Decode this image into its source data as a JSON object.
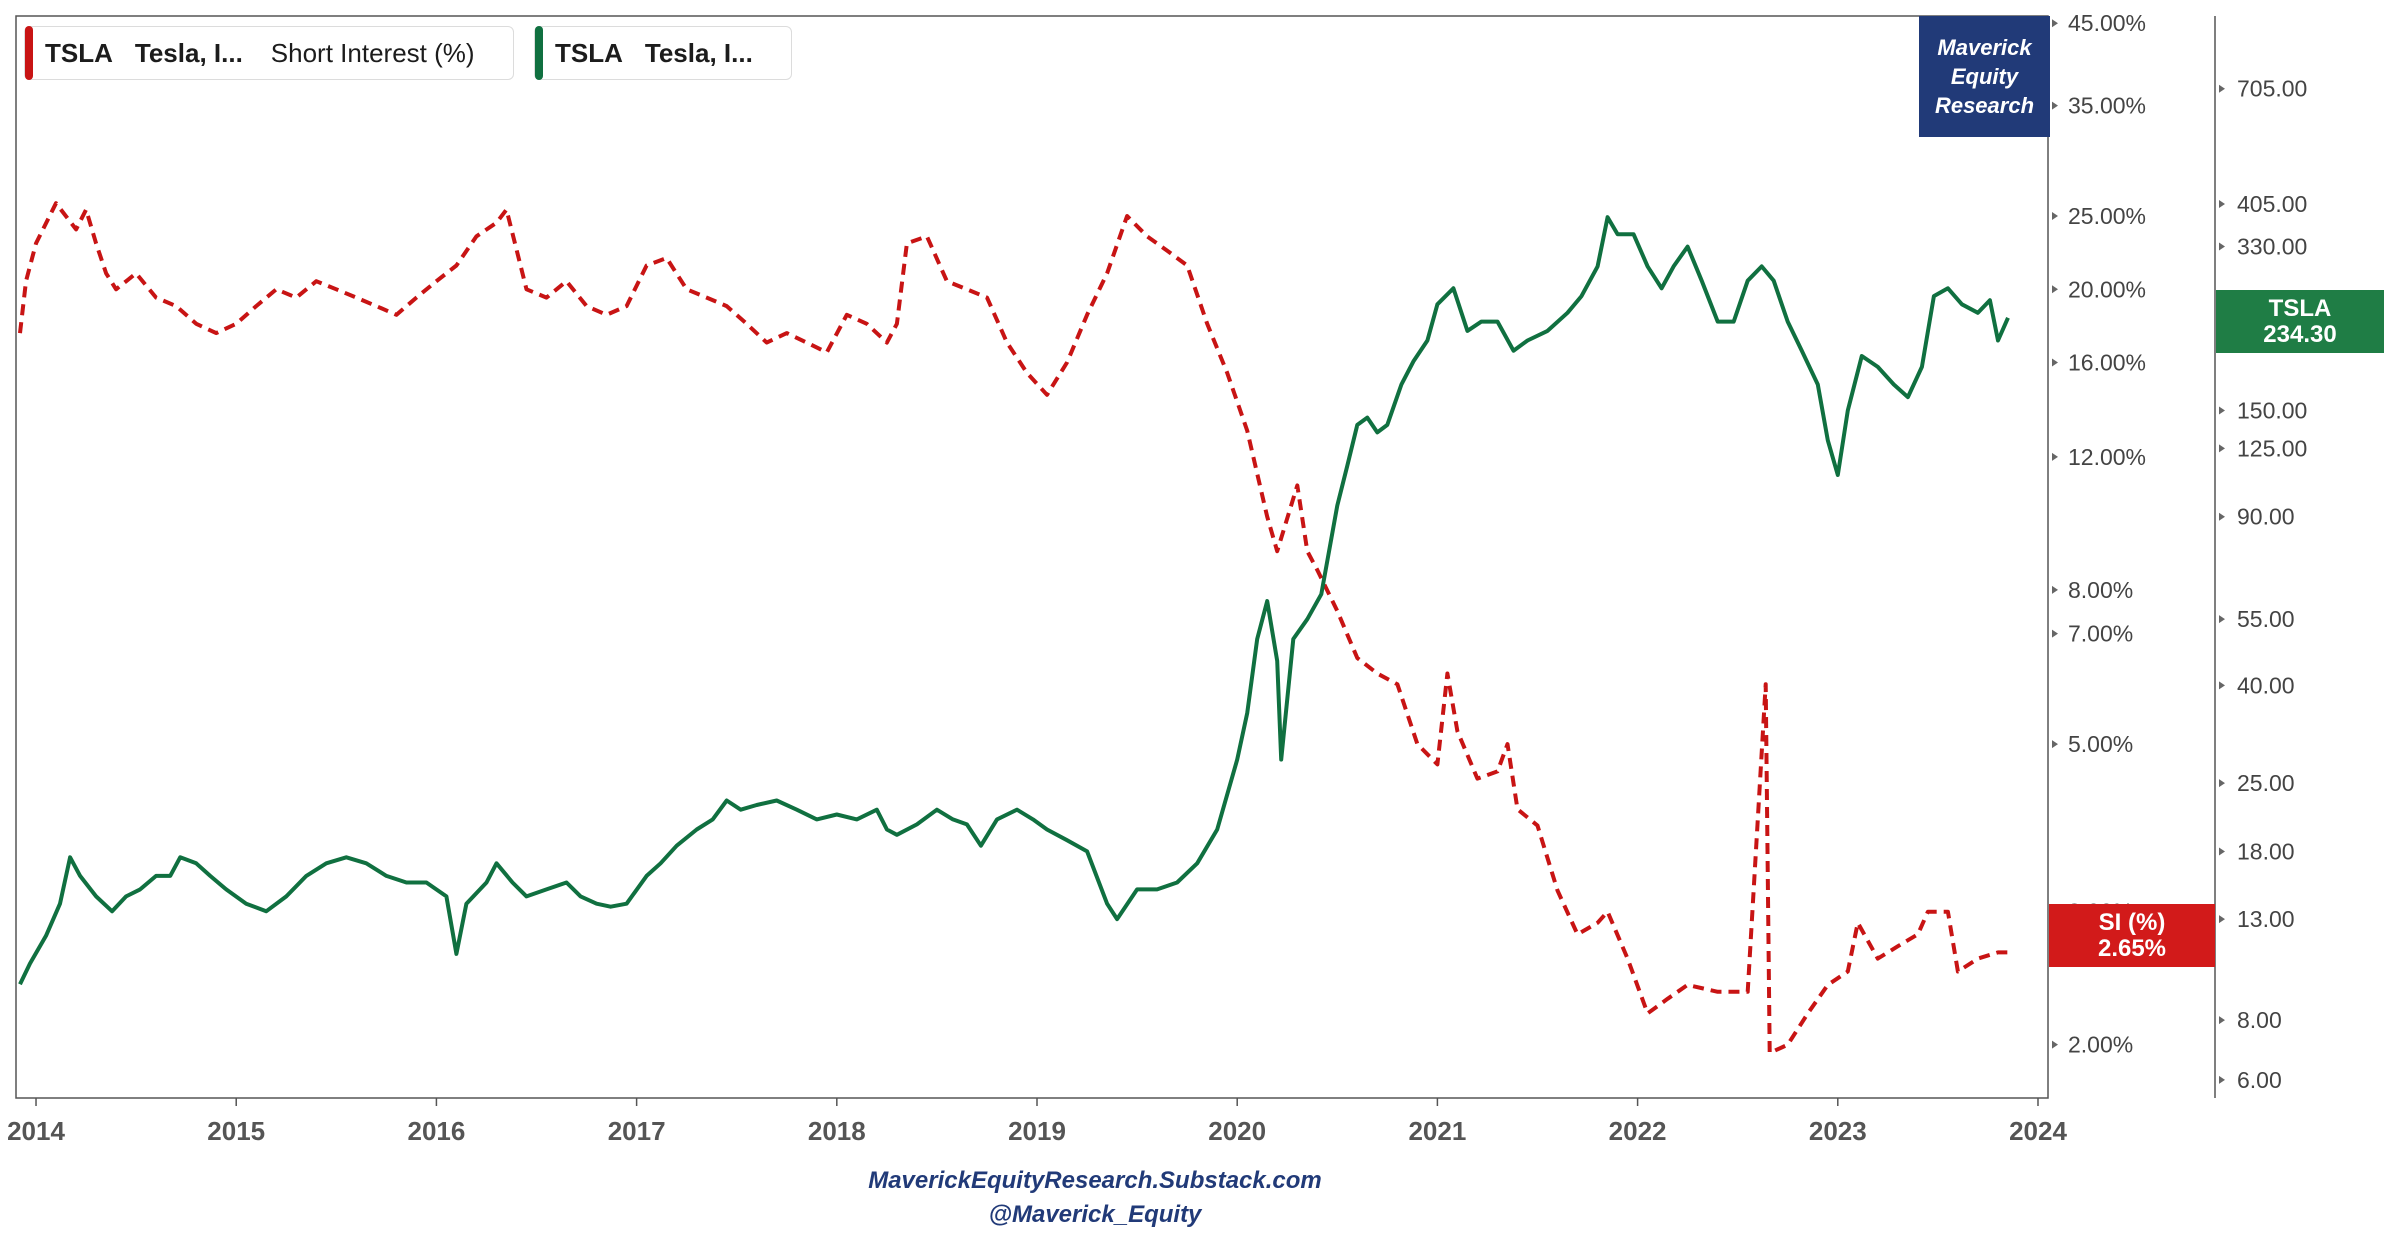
{
  "colors": {
    "price": "#107040",
    "short_interest": "#c81414",
    "brand_bg": "#213a78",
    "axis_text": "#444444"
  },
  "legend": [
    {
      "symbol": "TSLA",
      "name": "Tesla, I...",
      "metric": "Short Interest (%)",
      "color": "#c81414"
    },
    {
      "symbol": "TSLA",
      "name": "Tesla, I...",
      "metric": "",
      "color": "#107040"
    }
  ],
  "brand": {
    "line1": "Maverick",
    "line2": "Equity",
    "line3": "Research"
  },
  "footer": {
    "line1": "MaverickEquityResearch.Substack.com",
    "line2": "@Maverick_Equity"
  },
  "badges": {
    "price": {
      "label": "TSLA",
      "value": "234.30"
    },
    "short_interest": {
      "label": "SI (%)",
      "value": "2.65%"
    }
  },
  "chart_data": {
    "type": "line",
    "x_ticks": [
      "2014",
      "2015",
      "2016",
      "2017",
      "2018",
      "2019",
      "2020",
      "2021",
      "2022",
      "2023",
      "2024"
    ],
    "x_range": [
      2013.9,
      2024.05
    ],
    "left_axis": {
      "scale": "log",
      "range": [
        1.7,
        46
      ],
      "ticks": [
        45,
        35,
        25,
        20,
        16,
        12,
        8,
        7,
        5,
        3,
        2
      ],
      "tick_labels": [
        "45.00%",
        "35.00%",
        "25.00%",
        "20.00%",
        "16.00%",
        "12.00%",
        "8.00%",
        "7.00%",
        "5.00%",
        "3.00%",
        "2.00%"
      ]
    },
    "right_axis": {
      "scale": "log",
      "range": [
        5.5,
        1000
      ],
      "ticks": [
        705,
        405,
        330,
        150,
        125,
        90,
        55,
        40,
        25,
        18,
        13,
        8,
        6
      ],
      "tick_labels": [
        "705.00",
        "405.00",
        "330.00",
        "150.00",
        "125.00",
        "90.00",
        "55.00",
        "40.00",
        "25.00",
        "18.00",
        "13.00",
        "8.00",
        "6.00"
      ]
    },
    "series": [
      {
        "axis": "left",
        "style": "dashed",
        "points": [
          [
            2013.92,
            17.5
          ],
          [
            2013.95,
            20.5
          ],
          [
            2014.0,
            23.0
          ],
          [
            2014.1,
            26.0
          ],
          [
            2014.2,
            24.0
          ],
          [
            2014.25,
            25.5
          ],
          [
            2014.3,
            23.0
          ],
          [
            2014.35,
            21.0
          ],
          [
            2014.4,
            20.0
          ],
          [
            2014.5,
            21.0
          ],
          [
            2014.6,
            19.5
          ],
          [
            2014.7,
            19.0
          ],
          [
            2014.8,
            18.0
          ],
          [
            2014.9,
            17.5
          ],
          [
            2015.0,
            18.0
          ],
          [
            2015.1,
            19.0
          ],
          [
            2015.2,
            20.0
          ],
          [
            2015.3,
            19.5
          ],
          [
            2015.4,
            20.5
          ],
          [
            2015.5,
            20.0
          ],
          [
            2015.6,
            19.5
          ],
          [
            2015.7,
            19.0
          ],
          [
            2015.8,
            18.5
          ],
          [
            2015.9,
            19.5
          ],
          [
            2016.0,
            20.5
          ],
          [
            2016.1,
            21.5
          ],
          [
            2016.2,
            23.5
          ],
          [
            2016.3,
            24.5
          ],
          [
            2016.35,
            25.5
          ],
          [
            2016.45,
            20.0
          ],
          [
            2016.55,
            19.5
          ],
          [
            2016.65,
            20.5
          ],
          [
            2016.75,
            19.0
          ],
          [
            2016.85,
            18.5
          ],
          [
            2016.95,
            19.0
          ],
          [
            2017.05,
            21.5
          ],
          [
            2017.15,
            22.0
          ],
          [
            2017.25,
            20.0
          ],
          [
            2017.35,
            19.5
          ],
          [
            2017.45,
            19.0
          ],
          [
            2017.55,
            18.0
          ],
          [
            2017.65,
            17.0
          ],
          [
            2017.75,
            17.5
          ],
          [
            2017.85,
            17.0
          ],
          [
            2017.95,
            16.5
          ],
          [
            2018.05,
            18.5
          ],
          [
            2018.15,
            18.0
          ],
          [
            2018.25,
            17.0
          ],
          [
            2018.3,
            18.0
          ],
          [
            2018.35,
            23.0
          ],
          [
            2018.45,
            23.5
          ],
          [
            2018.55,
            20.5
          ],
          [
            2018.65,
            20.0
          ],
          [
            2018.75,
            19.5
          ],
          [
            2018.85,
            17.0
          ],
          [
            2018.95,
            15.5
          ],
          [
            2019.05,
            14.5
          ],
          [
            2019.15,
            16.0
          ],
          [
            2019.25,
            18.5
          ],
          [
            2019.35,
            21.0
          ],
          [
            2019.45,
            25.0
          ],
          [
            2019.55,
            23.5
          ],
          [
            2019.65,
            22.5
          ],
          [
            2019.75,
            21.5
          ],
          [
            2019.85,
            18.0
          ],
          [
            2019.95,
            15.5
          ],
          [
            2020.05,
            13.0
          ],
          [
            2020.15,
            10.0
          ],
          [
            2020.2,
            9.0
          ],
          [
            2020.3,
            11.0
          ],
          [
            2020.35,
            9.0
          ],
          [
            2020.4,
            8.5
          ],
          [
            2020.5,
            7.5
          ],
          [
            2020.6,
            6.5
          ],
          [
            2020.7,
            6.2
          ],
          [
            2020.8,
            6.0
          ],
          [
            2020.9,
            5.0
          ],
          [
            2021.0,
            4.7
          ],
          [
            2021.05,
            6.2
          ],
          [
            2021.1,
            5.2
          ],
          [
            2021.2,
            4.5
          ],
          [
            2021.3,
            4.6
          ],
          [
            2021.35,
            5.0
          ],
          [
            2021.4,
            4.1
          ],
          [
            2021.5,
            3.9
          ],
          [
            2021.6,
            3.2
          ],
          [
            2021.7,
            2.8
          ],
          [
            2021.8,
            2.9
          ],
          [
            2021.85,
            3.0
          ],
          [
            2021.95,
            2.6
          ],
          [
            2022.05,
            2.2
          ],
          [
            2022.15,
            2.3
          ],
          [
            2022.25,
            2.4
          ],
          [
            2022.4,
            2.35
          ],
          [
            2022.55,
            2.35
          ],
          [
            2022.64,
            6.0
          ],
          [
            2022.66,
            1.95
          ],
          [
            2022.75,
            2.0
          ],
          [
            2022.85,
            2.2
          ],
          [
            2022.95,
            2.4
          ],
          [
            2023.05,
            2.5
          ],
          [
            2023.1,
            2.9
          ],
          [
            2023.2,
            2.6
          ],
          [
            2023.3,
            2.7
          ],
          [
            2023.4,
            2.8
          ],
          [
            2023.45,
            3.0
          ],
          [
            2023.55,
            3.0
          ],
          [
            2023.6,
            2.5
          ],
          [
            2023.7,
            2.6
          ],
          [
            2023.8,
            2.65
          ],
          [
            2023.86,
            2.65
          ]
        ]
      },
      {
        "axis": "right",
        "style": "solid",
        "points": [
          [
            2013.92,
            9.5
          ],
          [
            2013.97,
            10.5
          ],
          [
            2014.05,
            12.0
          ],
          [
            2014.12,
            14.0
          ],
          [
            2014.17,
            17.5
          ],
          [
            2014.22,
            16.0
          ],
          [
            2014.3,
            14.5
          ],
          [
            2014.38,
            13.5
          ],
          [
            2014.45,
            14.5
          ],
          [
            2014.52,
            15.0
          ],
          [
            2014.6,
            16.0
          ],
          [
            2014.67,
            16.0
          ],
          [
            2014.72,
            17.5
          ],
          [
            2014.8,
            17.0
          ],
          [
            2014.87,
            16.0
          ],
          [
            2014.95,
            15.0
          ],
          [
            2015.05,
            14.0
          ],
          [
            2015.15,
            13.5
          ],
          [
            2015.25,
            14.5
          ],
          [
            2015.35,
            16.0
          ],
          [
            2015.45,
            17.0
          ],
          [
            2015.55,
            17.5
          ],
          [
            2015.65,
            17.0
          ],
          [
            2015.75,
            16.0
          ],
          [
            2015.85,
            15.5
          ],
          [
            2015.95,
            15.5
          ],
          [
            2016.05,
            14.5
          ],
          [
            2016.1,
            11.0
          ],
          [
            2016.15,
            14.0
          ],
          [
            2016.25,
            15.5
          ],
          [
            2016.3,
            17.0
          ],
          [
            2016.38,
            15.5
          ],
          [
            2016.45,
            14.5
          ],
          [
            2016.55,
            15.0
          ],
          [
            2016.65,
            15.5
          ],
          [
            2016.72,
            14.5
          ],
          [
            2016.8,
            14.0
          ],
          [
            2016.87,
            13.8
          ],
          [
            2016.95,
            14.0
          ],
          [
            2017.05,
            16.0
          ],
          [
            2017.12,
            17.0
          ],
          [
            2017.2,
            18.5
          ],
          [
            2017.3,
            20.0
          ],
          [
            2017.38,
            21.0
          ],
          [
            2017.45,
            23.0
          ],
          [
            2017.52,
            22.0
          ],
          [
            2017.6,
            22.5
          ],
          [
            2017.7,
            23.0
          ],
          [
            2017.8,
            22.0
          ],
          [
            2017.9,
            21.0
          ],
          [
            2018.0,
            21.5
          ],
          [
            2018.1,
            21.0
          ],
          [
            2018.2,
            22.0
          ],
          [
            2018.25,
            20.0
          ],
          [
            2018.3,
            19.5
          ],
          [
            2018.4,
            20.5
          ],
          [
            2018.5,
            22.0
          ],
          [
            2018.58,
            21.0
          ],
          [
            2018.65,
            20.5
          ],
          [
            2018.72,
            18.5
          ],
          [
            2018.8,
            21.0
          ],
          [
            2018.9,
            22.0
          ],
          [
            2018.98,
            21.0
          ],
          [
            2019.05,
            20.0
          ],
          [
            2019.15,
            19.0
          ],
          [
            2019.25,
            18.0
          ],
          [
            2019.35,
            14.0
          ],
          [
            2019.4,
            13.0
          ],
          [
            2019.5,
            15.0
          ],
          [
            2019.6,
            15.0
          ],
          [
            2019.7,
            15.5
          ],
          [
            2019.8,
            17.0
          ],
          [
            2019.9,
            20.0
          ],
          [
            2020.0,
            28.0
          ],
          [
            2020.05,
            35.0
          ],
          [
            2020.1,
            50.0
          ],
          [
            2020.15,
            60.0
          ],
          [
            2020.2,
            45.0
          ],
          [
            2020.22,
            28.0
          ],
          [
            2020.28,
            50.0
          ],
          [
            2020.35,
            55.0
          ],
          [
            2020.42,
            62.0
          ],
          [
            2020.5,
            95.0
          ],
          [
            2020.55,
            115.0
          ],
          [
            2020.6,
            140.0
          ],
          [
            2020.65,
            145.0
          ],
          [
            2020.7,
            135.0
          ],
          [
            2020.75,
            140.0
          ],
          [
            2020.82,
            170.0
          ],
          [
            2020.88,
            190.0
          ],
          [
            2020.95,
            210.0
          ],
          [
            2021.0,
            250.0
          ],
          [
            2021.08,
            270.0
          ],
          [
            2021.15,
            220.0
          ],
          [
            2021.22,
            230.0
          ],
          [
            2021.3,
            230.0
          ],
          [
            2021.38,
            200.0
          ],
          [
            2021.45,
            210.0
          ],
          [
            2021.55,
            220.0
          ],
          [
            2021.65,
            240.0
          ],
          [
            2021.72,
            260.0
          ],
          [
            2021.8,
            300.0
          ],
          [
            2021.85,
            380.0
          ],
          [
            2021.9,
            350.0
          ],
          [
            2021.98,
            350.0
          ],
          [
            2022.05,
            300.0
          ],
          [
            2022.12,
            270.0
          ],
          [
            2022.18,
            300.0
          ],
          [
            2022.25,
            330.0
          ],
          [
            2022.32,
            280.0
          ],
          [
            2022.4,
            230.0
          ],
          [
            2022.48,
            230.0
          ],
          [
            2022.55,
            280.0
          ],
          [
            2022.62,
            300.0
          ],
          [
            2022.68,
            280.0
          ],
          [
            2022.75,
            230.0
          ],
          [
            2022.82,
            200.0
          ],
          [
            2022.9,
            170.0
          ],
          [
            2022.95,
            130.0
          ],
          [
            2023.0,
            110.0
          ],
          [
            2023.05,
            150.0
          ],
          [
            2023.12,
            195.0
          ],
          [
            2023.2,
            185.0
          ],
          [
            2023.28,
            170.0
          ],
          [
            2023.35,
            160.0
          ],
          [
            2023.42,
            185.0
          ],
          [
            2023.48,
            260.0
          ],
          [
            2023.55,
            270.0
          ],
          [
            2023.62,
            250.0
          ],
          [
            2023.7,
            240.0
          ],
          [
            2023.76,
            255.0
          ],
          [
            2023.8,
            210.0
          ],
          [
            2023.85,
            234.3
          ]
        ]
      }
    ]
  }
}
